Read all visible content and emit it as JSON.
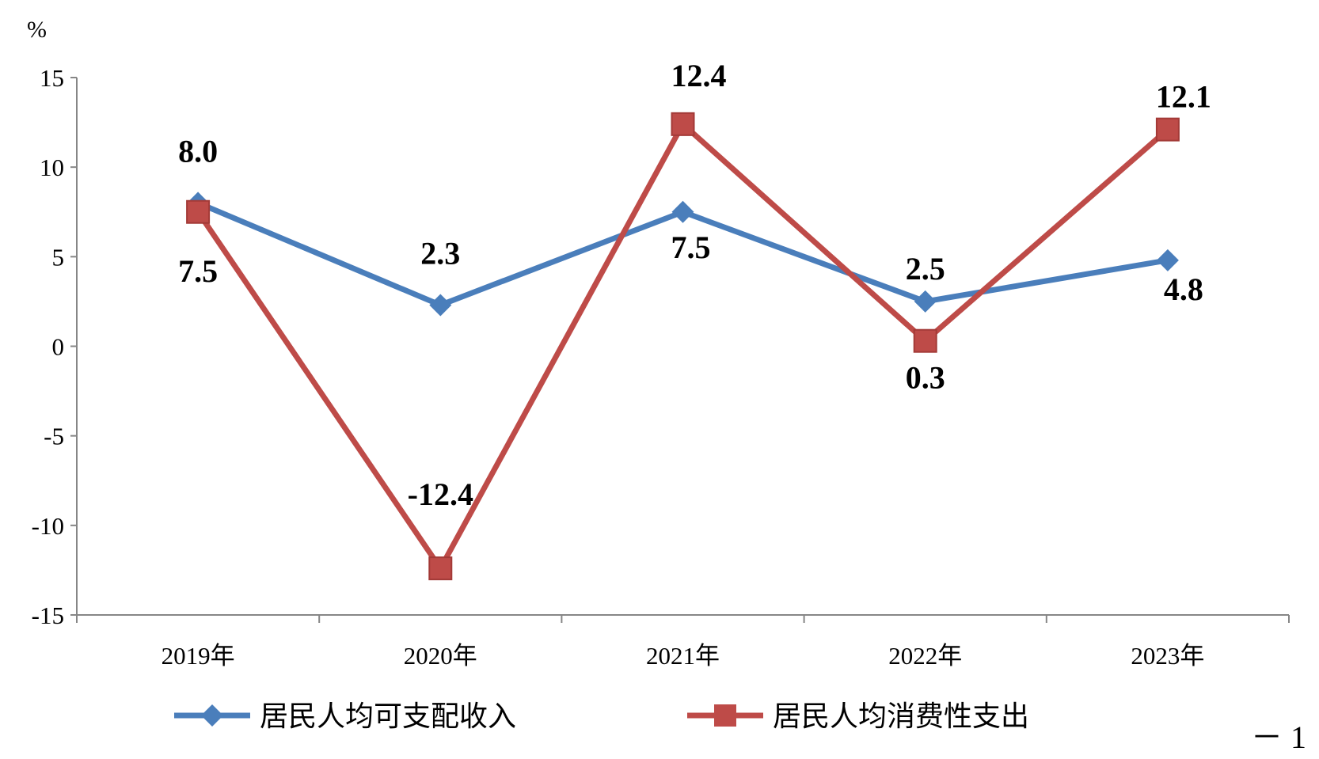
{
  "chart_data": {
    "type": "line",
    "unit": "%",
    "categories": [
      "2019年",
      "2020年",
      "2021年",
      "2022年",
      "2023年"
    ],
    "ylim": [
      -15,
      15
    ],
    "yticks": [
      "15",
      "10",
      "5",
      "0",
      "-5",
      "-10",
      "-15"
    ],
    "ytick_values": [
      15,
      10,
      5,
      0,
      -5,
      -10,
      -15
    ],
    "grid": false,
    "legend_position": "bottom",
    "series": [
      {
        "name": "居民人均可支配收入",
        "values": [
          8.0,
          2.3,
          7.5,
          2.5,
          4.8
        ],
        "labels": [
          "8.0",
          "2.3",
          "7.5",
          "2.5",
          "4.8"
        ],
        "color": "#4a7ebb",
        "marker": "diamond"
      },
      {
        "name": "居民人均消费性支出",
        "values": [
          7.5,
          -12.4,
          12.4,
          0.3,
          12.1
        ],
        "labels": [
          "7.5",
          "-12.4",
          "12.4",
          "0.3",
          "12.1"
        ],
        "color": "#be4b48",
        "marker": "square"
      }
    ]
  },
  "page_mark": "－ 1"
}
